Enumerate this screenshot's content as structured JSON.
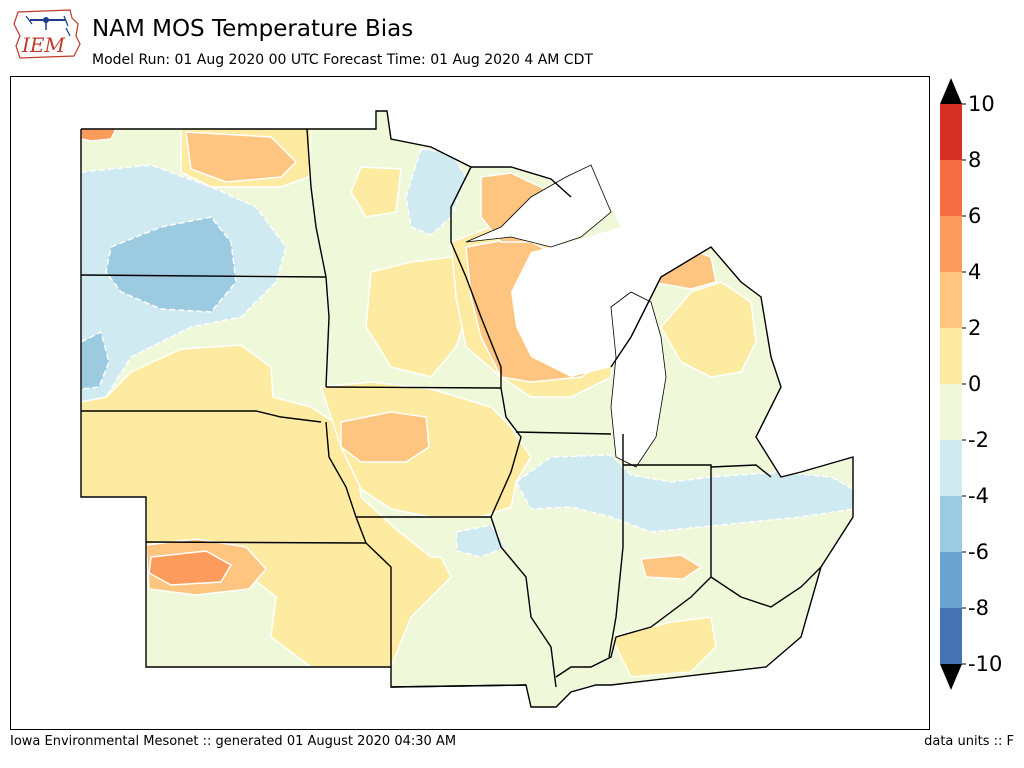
{
  "header": {
    "logo_text": "IEM",
    "title": "NAM MOS Temperature Bias",
    "subtitle": "Model Run: 01 Aug 2020 00 UTC Forecast Time: 01 Aug 2020 4 AM CDT"
  },
  "legend": {
    "ticks": [
      "10",
      "8",
      "6",
      "4",
      "2",
      "0",
      "-2",
      "-4",
      "-6",
      "-8",
      "-10"
    ],
    "colors": [
      "#d73027",
      "#f46d43",
      "#fc9c5c",
      "#fdc57f",
      "#feeba2",
      "#eff8d9",
      "#d0eaf2",
      "#9ccae1",
      "#6aa3cf",
      "#4773b4"
    ],
    "extend_high_color": "#000000",
    "extend_low_color": "#000000"
  },
  "footer": {
    "left": "Iowa Environmental Mesonet :: generated 01 August 2020 04:30 AM",
    "right": "data units :: F"
  }
}
